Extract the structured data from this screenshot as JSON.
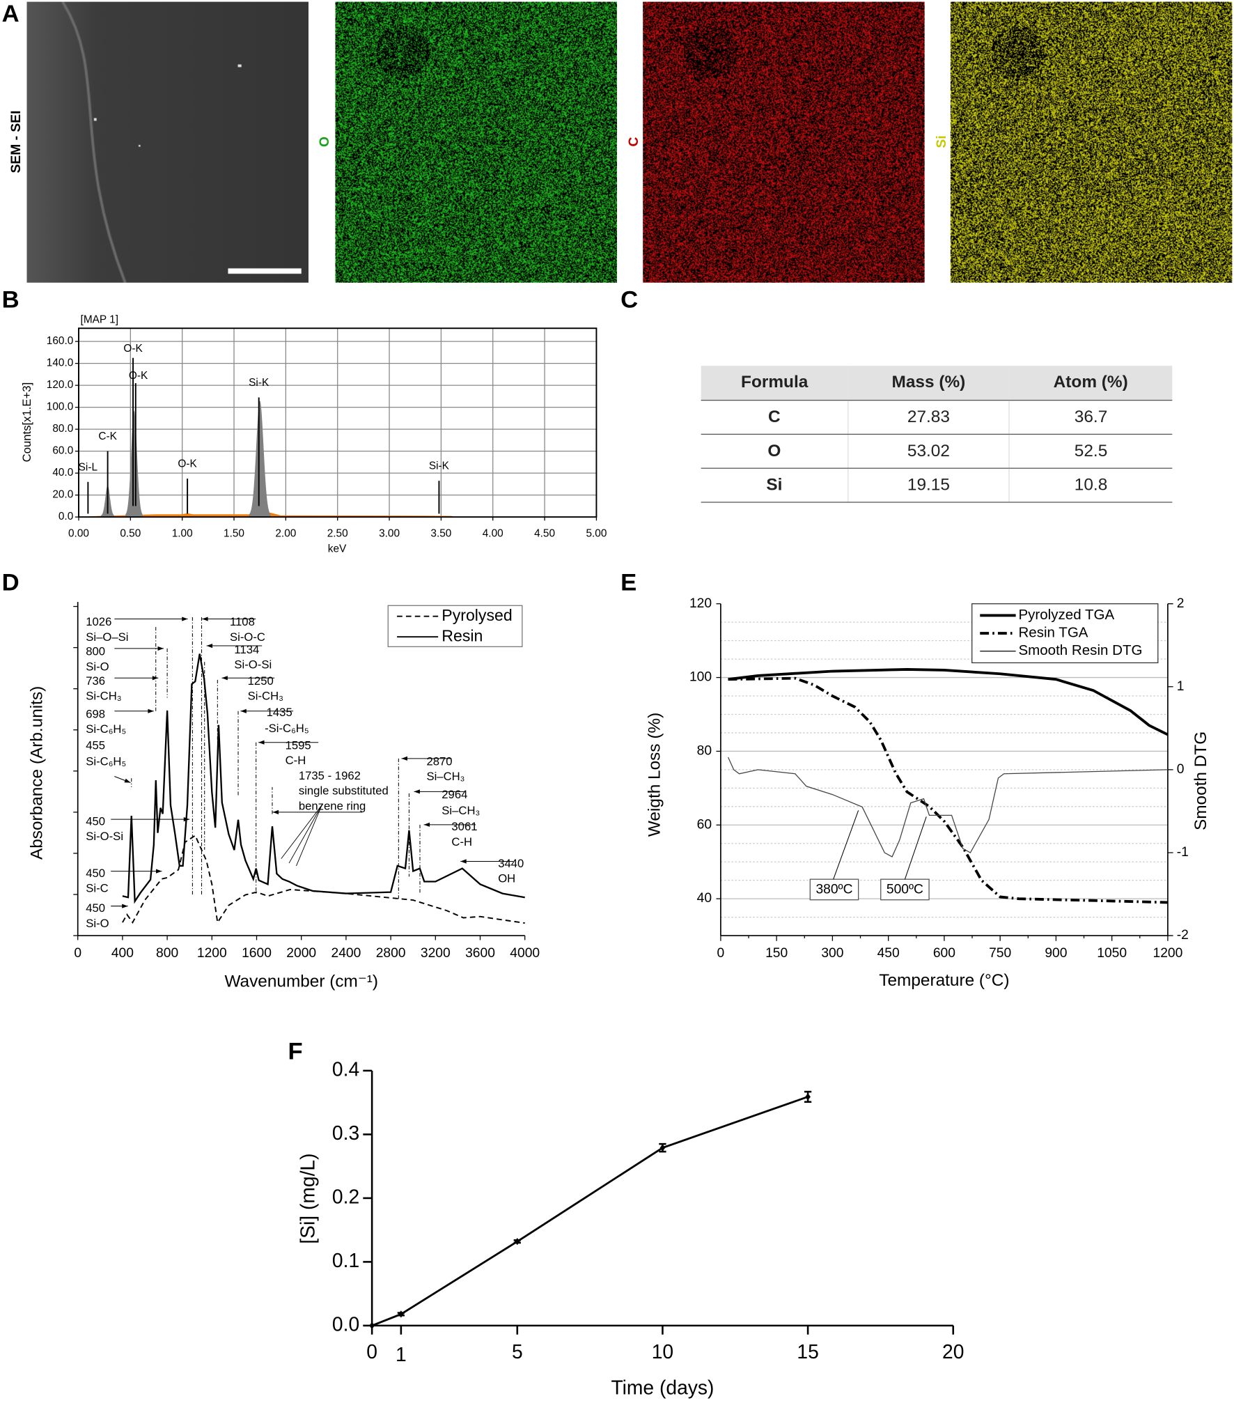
{
  "panels": {
    "a": "A",
    "b": "B",
    "c": "C",
    "d": "D",
    "e": "E",
    "f": "F"
  },
  "panel_a": {
    "images": [
      {
        "label": "SEM - SEI",
        "color": "#000000",
        "pixel": "#3a3a3a"
      },
      {
        "label": "O",
        "color": "#1aa31a",
        "pixel": "#22cc22"
      },
      {
        "label": "C",
        "color": "#c00000",
        "pixel": "#d01010"
      },
      {
        "label": "Si",
        "color": "#c8c800",
        "pixel": "#e0e010"
      }
    ]
  },
  "colors": {
    "eds_peak": "#808080",
    "eds_background": "#f08010",
    "grid": "#999999"
  },
  "table": {
    "headers": [
      "Formula",
      "Mass (%)",
      "Atom (%)"
    ],
    "rows": [
      [
        "C",
        "27.83",
        "36.7"
      ],
      [
        "O",
        "53.02",
        "52.5"
      ],
      [
        "Si",
        "19.15",
        "10.8"
      ]
    ]
  },
  "chart_data": [
    {
      "panel": "B",
      "type": "area",
      "title": "[MAP 1]",
      "xlabel": "keV",
      "ylabel": "Counts[x1.E+3]",
      "xlim": [
        0,
        5
      ],
      "ylim": [
        0,
        172
      ],
      "grid": true,
      "xticks": [
        "0.00",
        "0.50",
        "1.00",
        "1.50",
        "2.00",
        "2.50",
        "3.00",
        "3.50",
        "4.00",
        "4.50",
        "5.00"
      ],
      "yticks": [
        "0.0",
        "20.0",
        "40.0",
        "60.0",
        "80.0",
        "100.0",
        "120.0",
        "140.0",
        "160.0"
      ],
      "peaks": [
        {
          "keV": 0.28,
          "counts": 28
        },
        {
          "keV": 0.535,
          "counts": 96
        },
        {
          "keV": 1.75,
          "counts": 105
        }
      ],
      "background": [
        [
          0.1,
          0.5
        ],
        [
          0.2,
          1
        ],
        [
          0.75,
          2.5
        ],
        [
          1.0,
          2.5
        ],
        [
          1.05,
          3.5
        ],
        [
          1.1,
          2.5
        ],
        [
          1.65,
          2.5
        ],
        [
          1.85,
          4
        ],
        [
          1.95,
          1.5
        ],
        [
          3.3,
          1.2
        ],
        [
          3.6,
          1
        ],
        [
          3.62,
          0.3
        ],
        [
          5,
          0.3
        ]
      ],
      "markers": [
        {
          "label": "Si-L",
          "keV": 0.09,
          "counts": 32
        },
        {
          "label": "C-K",
          "keV": 0.28,
          "counts": 60
        },
        {
          "label": "O-K",
          "keV": 0.525,
          "counts": 145
        },
        {
          "label": "O-K",
          "keV": 0.55,
          "counts": 122
        },
        {
          "label": "O-K",
          "keV": 1.05,
          "counts": 35
        },
        {
          "label": "Si-K",
          "keV": 1.74,
          "counts": 109
        },
        {
          "label": "Si-K",
          "keV": 3.48,
          "counts": 33
        }
      ]
    },
    {
      "panel": "D",
      "type": "line",
      "xlabel": "Wavenumber (cm⁻¹)",
      "ylabel": "Absorbance (Arb.units)",
      "xlim": [
        0,
        4000
      ],
      "ylim": [
        0,
        1
      ],
      "xticks": [
        "0",
        "400",
        "800",
        "1200",
        "1600",
        "2000",
        "2400",
        "2800",
        "3200",
        "3600",
        "4000"
      ],
      "legend_position": "top-right",
      "series": [
        {
          "name": "Pyrolysed",
          "style": "dashed",
          "x": [
            400,
            440,
            490,
            600,
            750,
            800,
            900,
            960,
            1050,
            1150,
            1200,
            1250,
            1350,
            1500,
            1600,
            1700,
            1900,
            2400,
            3000,
            3300,
            3450,
            3600,
            4000
          ],
          "y": [
            0.04,
            0.064,
            0.04,
            0.108,
            0.172,
            0.176,
            0.2,
            0.284,
            0.304,
            0.228,
            0.156,
            0.04,
            0.092,
            0.124,
            0.132,
            0.12,
            0.14,
            0.128,
            0.108,
            0.076,
            0.054,
            0.058,
            0.038
          ]
        },
        {
          "name": "Resin",
          "style": "solid",
          "x": [
            400,
            450,
            480,
            510,
            560,
            650,
            680,
            698,
            715,
            740,
            760,
            800,
            830,
            870,
            910,
            940,
            980,
            1020,
            1050,
            1090,
            1130,
            1160,
            1200,
            1230,
            1260,
            1290,
            1350,
            1400,
            1435,
            1460,
            1500,
            1570,
            1595,
            1620,
            1700,
            1740,
            1780,
            1830,
            1890,
            1960,
            2100,
            2400,
            2800,
            2860,
            2930,
            2964,
            3000,
            3060,
            3100,
            3200,
            3440,
            3600,
            3800,
            4000
          ],
          "y": [
            0.12,
            0.116,
            0.364,
            0.104,
            0.13,
            0.17,
            0.276,
            0.472,
            0.312,
            0.388,
            0.37,
            0.684,
            0.396,
            0.308,
            0.212,
            0.212,
            0.396,
            0.764,
            0.772,
            0.856,
            0.78,
            0.676,
            0.436,
            0.328,
            0.64,
            0.404,
            0.308,
            0.26,
            0.352,
            0.276,
            0.228,
            0.172,
            0.204,
            0.168,
            0.156,
            0.332,
            0.188,
            0.172,
            0.164,
            0.152,
            0.136,
            0.128,
            0.132,
            0.212,
            0.204,
            0.32,
            0.196,
            0.204,
            0.164,
            0.164,
            0.204,
            0.156,
            0.128,
            0.116
          ]
        }
      ],
      "annotations": [
        "1026",
        "Si–O–Si",
        "800",
        "Si-O",
        "736",
        "Si-CH₃",
        "698",
        "Si-C₆H₅",
        "455",
        "Si-C₆H₅",
        "450",
        "Si-O-Si",
        "450",
        "Si-C",
        "450",
        "Si-O",
        "1108",
        "Si-O-C",
        "1134",
        "Si-O-Si",
        "1250",
        "Si-CH₃",
        "1435",
        "-Si-C₆H₅",
        "1595",
        "C-H",
        "1735 - 1962",
        "single substituted",
        "benzene ring",
        "2870",
        "Si–CH₃",
        "2964",
        "Si–CH₃",
        "3061",
        "C-H",
        "3440",
        "OH"
      ]
    },
    {
      "panel": "E",
      "type": "line",
      "xlabel": "Temperature (°C)",
      "ylabel": "Weigth Loss (%)",
      "y2label": "Smooth DTG",
      "xlim": [
        0,
        1200
      ],
      "ylim": [
        30,
        120
      ],
      "y2lim": [
        -2,
        2
      ],
      "xticks": [
        "0",
        "150",
        "300",
        "450",
        "600",
        "750",
        "900",
        "1050",
        "1200"
      ],
      "yticks": [
        "40",
        "60",
        "80",
        "100",
        "120"
      ],
      "y2ticks": [
        "-2",
        "-1",
        "0",
        "1",
        "2"
      ],
      "legend_position": "top-right",
      "series": [
        {
          "name": "Pyrolyzed TGA",
          "axis": "left",
          "style": "thick-solid",
          "x": [
            20,
            100,
            300,
            500,
            600,
            750,
            900,
            1000,
            1100,
            1150,
            1200
          ],
          "y": [
            99.5,
            100.5,
            101.7,
            102.2,
            102,
            101,
            99.5,
            96.5,
            91,
            87,
            84.5
          ]
        },
        {
          "name": "Resin TGA",
          "axis": "left",
          "style": "dash-dot",
          "x": [
            20,
            200,
            250,
            300,
            360,
            400,
            430,
            470,
            500,
            560,
            600,
            650,
            700,
            750,
            800,
            1000,
            1200
          ],
          "y": [
            99.5,
            99.8,
            98,
            95,
            92,
            88,
            83,
            74,
            69,
            65,
            61,
            54,
            45,
            40.5,
            40,
            39.5,
            39
          ]
        },
        {
          "name": "Smooth Resin DTG",
          "axis": "right",
          "style": "thin-solid",
          "x": [
            20,
            35,
            50,
            100,
            200,
            230,
            300,
            380,
            440,
            460,
            480,
            510,
            545,
            560,
            620,
            650,
            670,
            720,
            745,
            760,
            1200
          ],
          "y": [
            0.15,
            0.0,
            -0.05,
            0,
            -0.05,
            -0.2,
            -0.3,
            -0.45,
            -1.0,
            -1.05,
            -0.85,
            -0.4,
            -0.35,
            -0.55,
            -0.55,
            -0.95,
            -1.0,
            -0.6,
            -0.1,
            -0.05,
            0
          ]
        }
      ],
      "annotations": [
        "380ºC",
        "500ºC"
      ]
    },
    {
      "panel": "F",
      "type": "line",
      "xlabel": "Time (days)",
      "ylabel": "[Si] (mg/L)",
      "xlim": [
        0,
        20
      ],
      "ylim": [
        0,
        0.4
      ],
      "xticks": [
        "0",
        "1",
        "5",
        "10",
        "15",
        "20"
      ],
      "yticks": [
        "0.0",
        "0.1",
        "0.2",
        "0.3",
        "0.4"
      ],
      "x": [
        0,
        1,
        5,
        10,
        15
      ],
      "y": [
        0,
        0.018,
        0.132,
        0.279,
        0.359
      ],
      "error": [
        0,
        0.002,
        0.002,
        0.006,
        0.008
      ]
    }
  ]
}
